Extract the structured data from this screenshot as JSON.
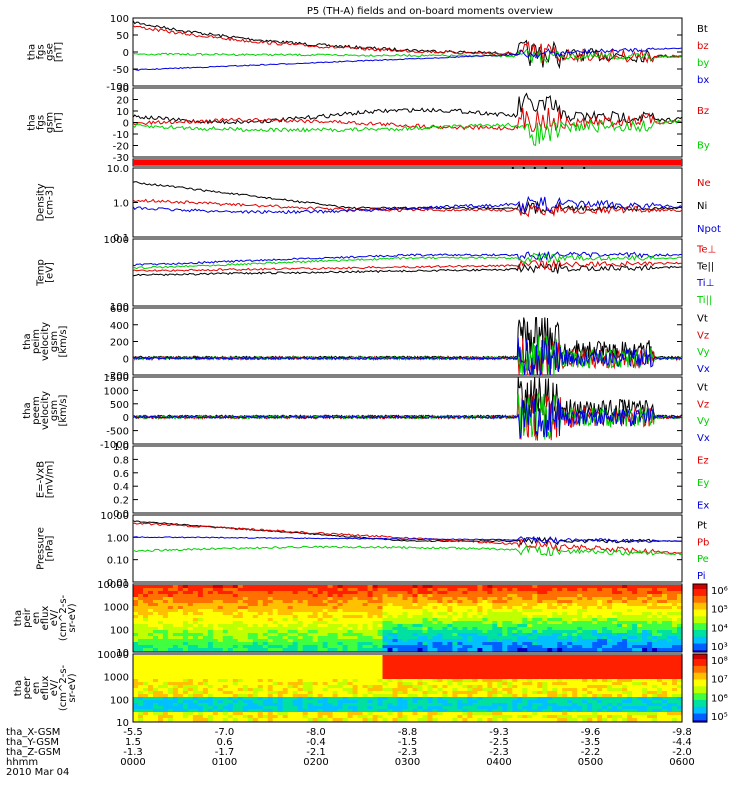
{
  "title": "P5 (TH-A) fields and on-board moments overview",
  "date": "2010 Mar 04",
  "colors": {
    "black": "#000000",
    "red": "#e00000",
    "green": "#00d000",
    "blue": "#0000e0"
  },
  "chart_data": [
    {
      "id": "fgs_gse",
      "type": "line",
      "ylabel": [
        "tha",
        "fgs",
        "gse",
        "[nT]"
      ],
      "yticks": [
        "100",
        "50",
        "0",
        "-50",
        "-100"
      ],
      "ylim": [
        -100,
        100
      ],
      "legend": [
        {
          "name": "Bt",
          "color": "black"
        },
        {
          "name": "bz",
          "color": "red"
        },
        {
          "name": "by",
          "color": "green"
        },
        {
          "name": "bx",
          "color": "blue"
        }
      ]
    },
    {
      "id": "fgs_gsm",
      "type": "line",
      "ylabel": [
        "tha",
        "fgs",
        "gsm",
        "[nT]"
      ],
      "yticks": [
        "30",
        "20",
        "10",
        "0",
        "-10",
        "-20",
        "-30"
      ],
      "ylim": [
        -30,
        30
      ],
      "legend": [
        {
          "name": "Bz",
          "color": "red"
        },
        {
          "name": "By",
          "color": "green"
        }
      ]
    },
    {
      "id": "flag_bar",
      "type": "bar",
      "ylabel": [],
      "yticks": [],
      "legend": []
    },
    {
      "id": "density",
      "type": "line",
      "ylabel": [
        "Density",
        "[cm-3]"
      ],
      "yticks": [
        "10.0",
        "1.0",
        "0.1"
      ],
      "ylim": [
        0.1,
        10
      ],
      "log": true,
      "legend": [
        {
          "name": "Ne",
          "color": "red"
        },
        {
          "name": "Ni",
          "color": "black"
        },
        {
          "name": "Npot",
          "color": "blue"
        }
      ]
    },
    {
      "id": "temperature",
      "type": "line",
      "ylabel": [
        "Temp",
        "[eV]"
      ],
      "yticks": [
        "1000",
        "100"
      ],
      "ylim": [
        100,
        10000
      ],
      "log": true,
      "legend": [
        {
          "name": "Te⊥",
          "color": "red"
        },
        {
          "name": "Te||",
          "color": "black"
        },
        {
          "name": "Ti⊥",
          "color": "blue"
        },
        {
          "name": "Ti||",
          "color": "green"
        }
      ]
    },
    {
      "id": "peim_velocity",
      "type": "line",
      "ylabel": [
        "tha",
        "peim",
        "velocity",
        "gsm",
        "[km/s]"
      ],
      "yticks": [
        "600",
        "400",
        "200",
        "0",
        "-200"
      ],
      "ylim": [
        -200,
        600
      ],
      "legend": [
        {
          "name": "Vt",
          "color": "black"
        },
        {
          "name": "Vz",
          "color": "red"
        },
        {
          "name": "Vy",
          "color": "green"
        },
        {
          "name": "Vx",
          "color": "blue"
        }
      ]
    },
    {
      "id": "peem_velocity",
      "type": "line",
      "ylabel": [
        "tha",
        "peem",
        "velocity",
        "gsm",
        "[km/s]"
      ],
      "yticks": [
        "1500",
        "1000",
        "500",
        "0",
        "-500",
        "-1000"
      ],
      "ylim": [
        -1000,
        1500
      ],
      "legend": [
        {
          "name": "Vt",
          "color": "black"
        },
        {
          "name": "Vz",
          "color": "red"
        },
        {
          "name": "Vy",
          "color": "green"
        },
        {
          "name": "Vx",
          "color": "blue"
        }
      ]
    },
    {
      "id": "e_vxb",
      "type": "line",
      "ylabel": [
        "E=-VxB",
        "[mV/m]"
      ],
      "yticks": [
        "1.0",
        "0.8",
        "0.6",
        "0.4",
        "0.2",
        "0.0"
      ],
      "ylim": [
        0,
        1
      ],
      "legend": [
        {
          "name": "Ez",
          "color": "red"
        },
        {
          "name": "Ey",
          "color": "green"
        },
        {
          "name": "Ex",
          "color": "blue"
        }
      ]
    },
    {
      "id": "pressure",
      "type": "line",
      "ylabel": [
        "Pressure",
        "[nPa]"
      ],
      "yticks": [
        "10.00",
        "1.00",
        "0.10",
        "0.01"
      ],
      "ylim": [
        0.01,
        10
      ],
      "log": true,
      "legend": [
        {
          "name": "Pt",
          "color": "black"
        },
        {
          "name": "Pb",
          "color": "red"
        },
        {
          "name": "Pe",
          "color": "green"
        },
        {
          "name": "Pi",
          "color": "blue"
        }
      ]
    },
    {
      "id": "peir_spec",
      "type": "heatmap",
      "ylabel": [
        "tha",
        "peir",
        "en",
        "eflux",
        "eV/",
        "(cm^2-s-",
        "sr-eV)"
      ],
      "yticks": [
        "10000",
        "1000",
        "100",
        "10"
      ],
      "cbar_ticks": [
        "10⁶",
        "10⁵",
        "10⁴",
        "10³"
      ]
    },
    {
      "id": "peer_spec",
      "type": "heatmap",
      "ylabel": [
        "tha",
        "peer",
        "en",
        "eflux",
        "eV/",
        "(cm^2-s-",
        "sr-eV)"
      ],
      "yticks": [
        "10000",
        "1000",
        "100",
        "10"
      ],
      "cbar_ticks": [
        "10⁸",
        "10⁷",
        "10⁶",
        "10⁵"
      ]
    }
  ],
  "xaxis": {
    "rows": [
      {
        "label": "tha_X-GSM",
        "values": [
          "-5.5",
          "-7.0",
          "-8.0",
          "-8.8",
          "-9.3",
          "-9.6",
          "-9.8"
        ]
      },
      {
        "label": "tha_Y-GSM",
        "values": [
          "1.5",
          "0.6",
          "-0.4",
          "-1.5",
          "-2.5",
          "-3.5",
          "-4.4"
        ]
      },
      {
        "label": "tha_Z-GSM",
        "values": [
          "-1.3",
          "-1.7",
          "-2.1",
          "-2.3",
          "-2.3",
          "-2.2",
          "-2.0"
        ]
      },
      {
        "label": "hhmm",
        "values": [
          "0000",
          "0100",
          "0200",
          "0300",
          "0400",
          "0500",
          "0600"
        ]
      }
    ]
  }
}
